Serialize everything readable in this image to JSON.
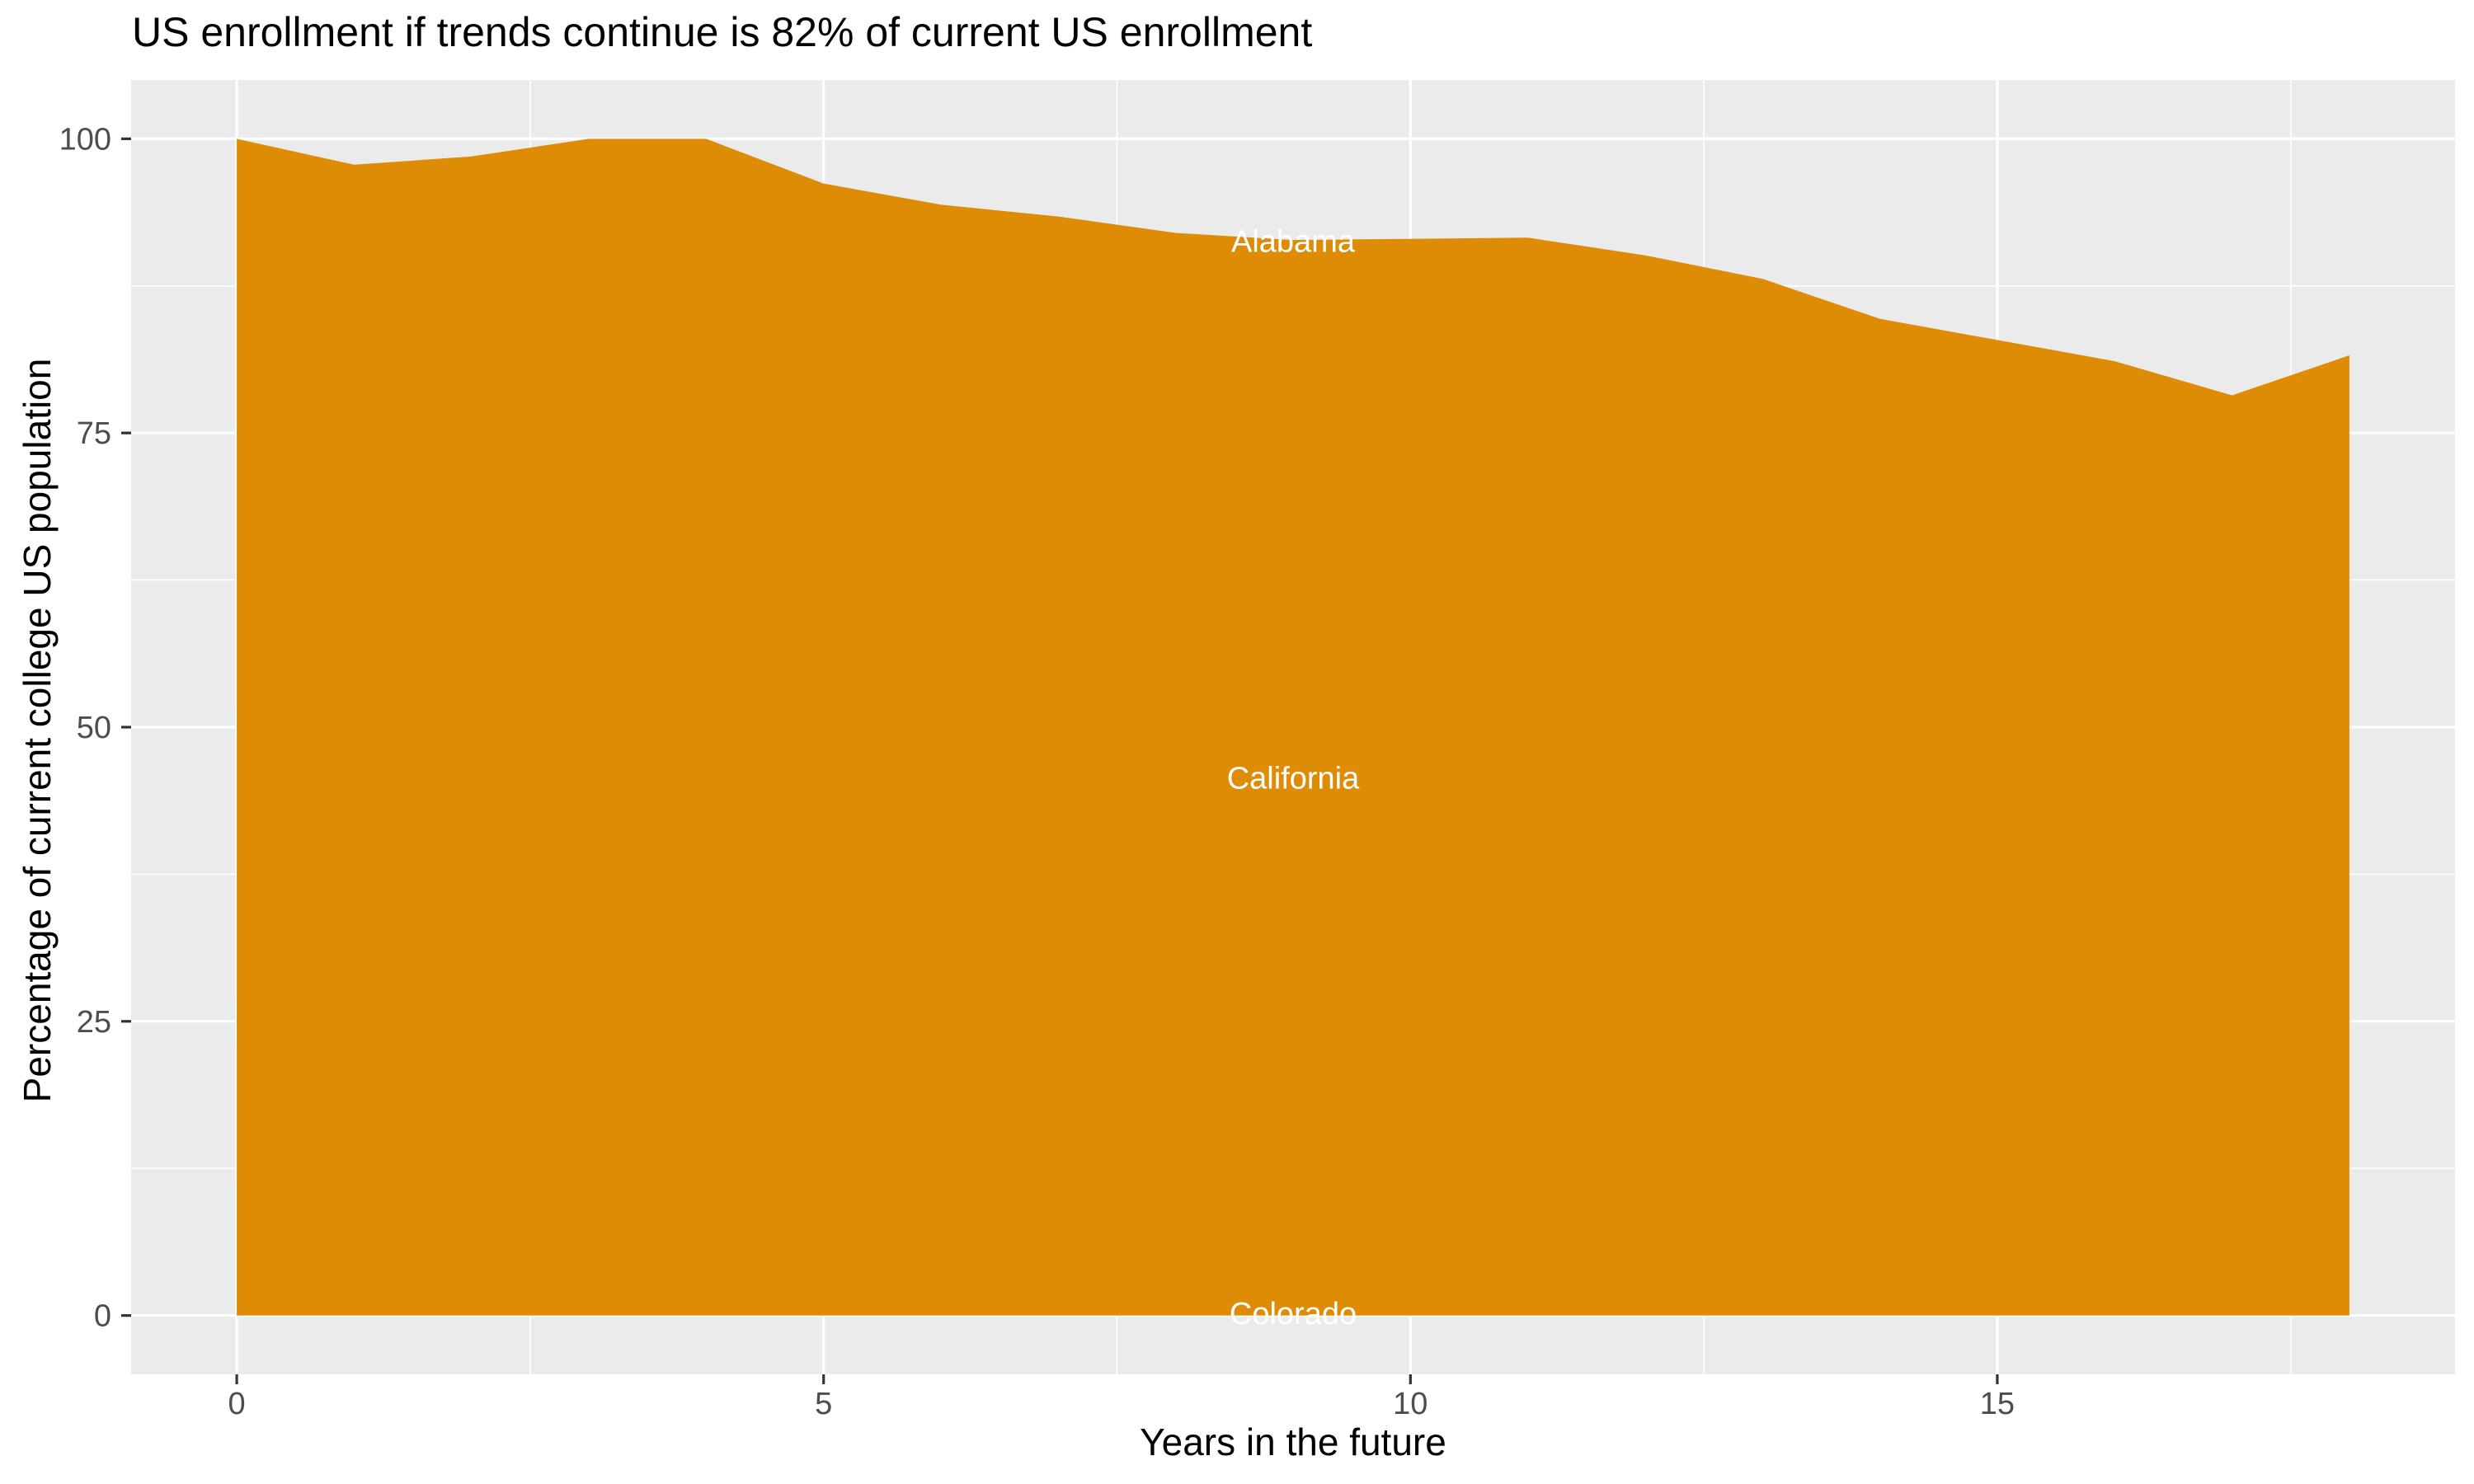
{
  "title": "US enrollment if trends continue is 82% of current US enrollment",
  "chart_data": {
    "type": "area",
    "title": "US enrollment if trends continue is 82% of current US enrollment",
    "xlabel": "Years in the future",
    "ylabel": "Percentage of current college US population",
    "x": [
      0,
      1,
      2,
      3,
      4,
      5,
      6,
      7,
      8,
      9,
      10,
      11,
      12,
      13,
      14,
      15,
      16,
      17,
      18
    ],
    "values": [
      100,
      97.8,
      98.5,
      100,
      100,
      96.2,
      94.4,
      93.4,
      92.0,
      91.4,
      91.5,
      91.6,
      90.1,
      88.1,
      84.7,
      82.9,
      81.1,
      78.2,
      81.6
    ],
    "x_tick_labels": [
      "0",
      "5",
      "10",
      "15"
    ],
    "x_ticks": [
      0,
      5,
      10,
      15
    ],
    "x_minor_ticks": [
      2.5,
      7.5,
      12.5,
      17.5
    ],
    "y_tick_labels": [
      "0",
      "25",
      "50",
      "75",
      "100"
    ],
    "y_ticks": [
      0,
      25,
      50,
      75,
      100
    ],
    "y_minor_ticks": [
      12.5,
      37.5,
      62.5,
      87.5
    ],
    "xlim": [
      -0.9,
      18.9
    ],
    "ylim": [
      -5,
      105
    ],
    "grid": "on",
    "legend": "none",
    "area_labels": [
      {
        "text": "Alabama",
        "x": 9,
        "y": 91.3
      },
      {
        "text": "California",
        "x": 9,
        "y": 45.7
      },
      {
        "text": "Colorado",
        "x": 9,
        "y": 0.2
      }
    ],
    "colors": {
      "area_fill": "#DE8C05",
      "panel_background": "#EBEBEB",
      "gridline": "#FFFFFF",
      "tick_mark": "#333333",
      "tick_label": "#4D4D4D",
      "area_label_text": "#FFFFFF",
      "title_text": "#000000"
    }
  }
}
